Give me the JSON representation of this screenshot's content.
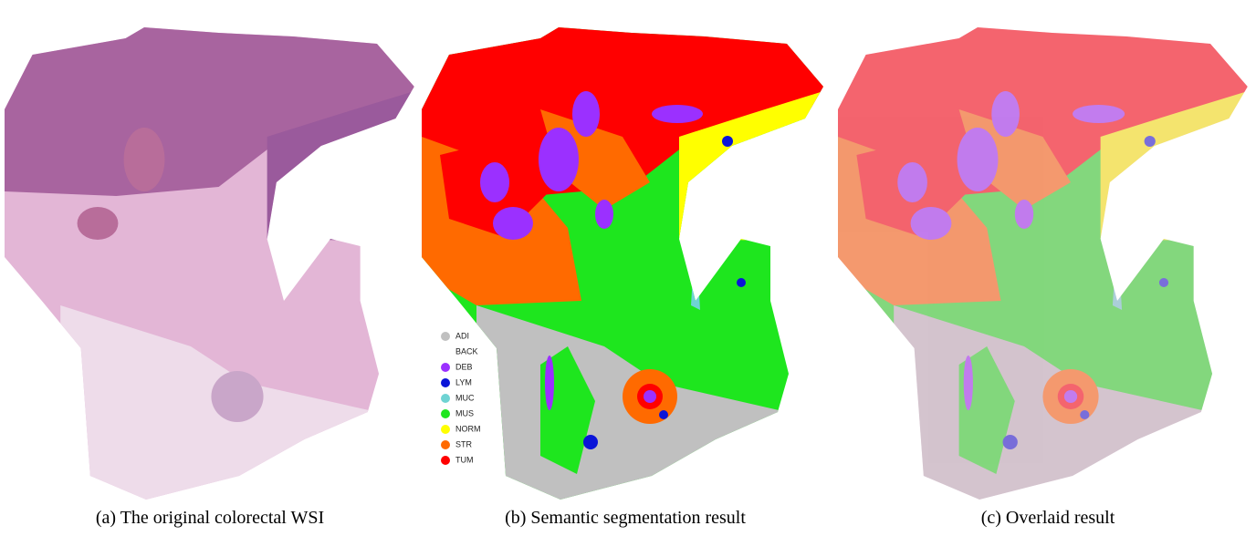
{
  "panels": [
    {
      "caption": "(a) The original colorectal WSI"
    },
    {
      "caption": "(b) Semantic segmentation result"
    },
    {
      "caption": "(c) Overlaid result"
    }
  ],
  "legend": {
    "items": [
      {
        "label": "ADI",
        "color": "#c0c0c0"
      },
      {
        "label": "BACK",
        "color": "#ffffff"
      },
      {
        "label": "DEB",
        "color": "#9b30ff"
      },
      {
        "label": "LYM",
        "color": "#0a14d8"
      },
      {
        "label": "MUC",
        "color": "#6fd3d3"
      },
      {
        "label": "MUS",
        "color": "#1ee61e"
      },
      {
        "label": "NORM",
        "color": "#ffff00"
      },
      {
        "label": "STR",
        "color": "#ff6a00"
      },
      {
        "label": "TUM",
        "color": "#ff0000"
      }
    ]
  }
}
